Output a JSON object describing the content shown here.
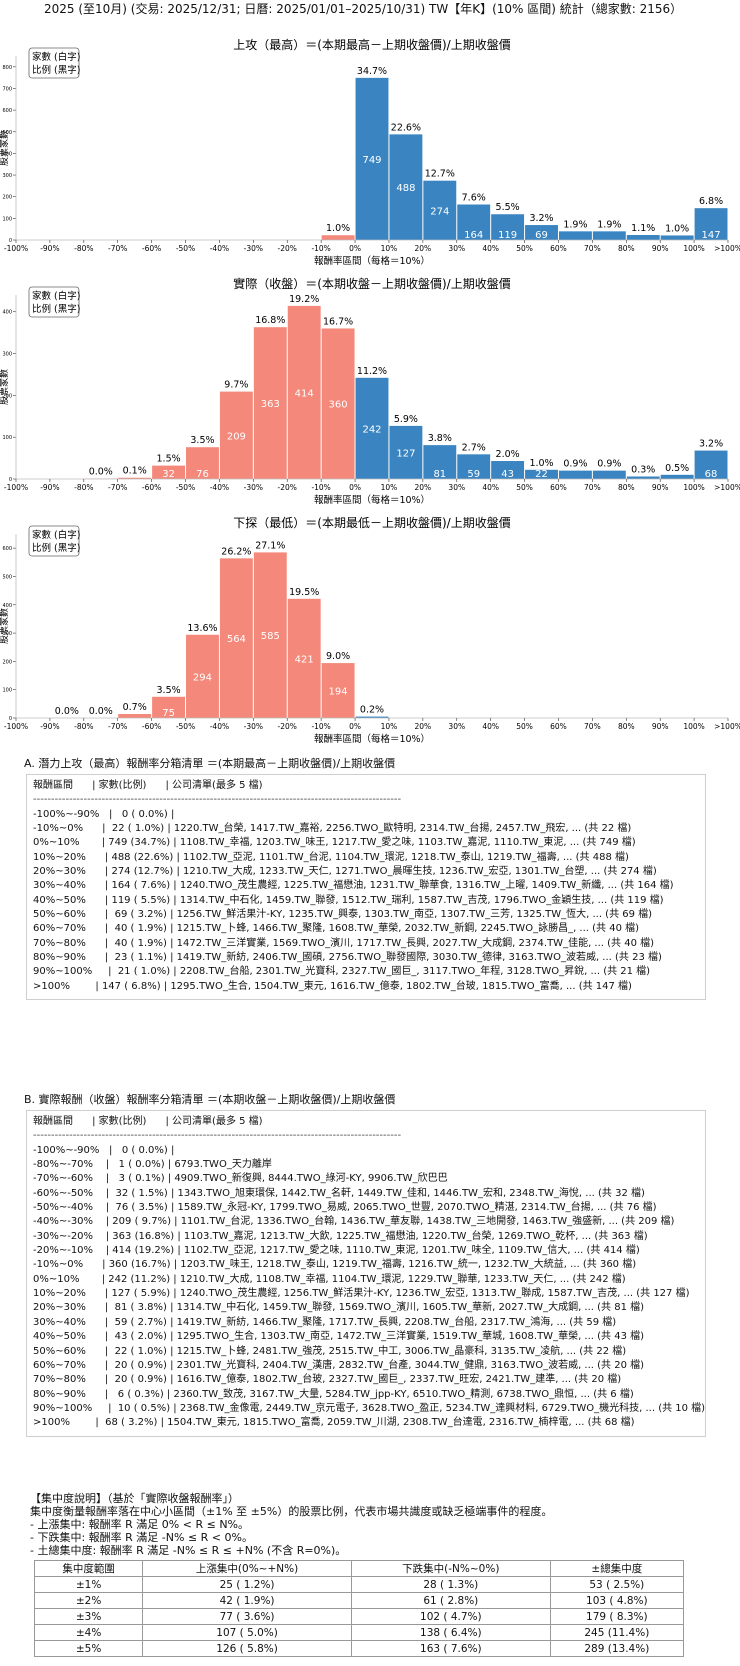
{
  "page_title": "2025 (至10月) (交易: 2025/12/31; 日曆: 2025/01/01–2025/10/31) TW【年K】(10% 區間) 統計（總家數: 2156）",
  "legend": {
    "line1": "家數 (白字)",
    "line2": "比例 (黑字)"
  },
  "colors": {
    "positive": "#3a85c1",
    "negative": "#f4887a"
  },
  "chart_data": [
    {
      "type": "bar",
      "title": "上攻（最高）＝(本期最高－上期收盤價)/上期收盤價",
      "xlabel": "報酬率區間（每格＝10%）",
      "ylabel": "股票家數",
      "ylim": [
        0,
        850
      ],
      "yticks": [
        0,
        100,
        200,
        300,
        400,
        500,
        600,
        700,
        800
      ],
      "xticks": [
        "-100%",
        "-90%",
        "-80%",
        "-70%",
        "-60%",
        "-50%",
        "-40%",
        "-30%",
        "-20%",
        "-10%",
        "0%",
        "10%",
        "20%",
        "30%",
        "40%",
        "50%",
        "60%",
        "70%",
        "80%",
        "90%",
        "100%",
        ">100%"
      ],
      "counts": [
        0,
        0,
        0,
        0,
        0,
        0,
        0,
        0,
        0,
        22,
        749,
        488,
        274,
        164,
        119,
        69,
        40,
        40,
        23,
        21,
        147
      ],
      "pcts": [
        "",
        "",
        "",
        "",
        "",
        "",
        "",
        "",
        "",
        "1.0%",
        "34.7%",
        "22.6%",
        "12.7%",
        "7.6%",
        "5.5%",
        "3.2%",
        "1.9%",
        "1.9%",
        "1.1%",
        "1.0%",
        "6.8%"
      ]
    },
    {
      "type": "bar",
      "title": "實際（收盤）＝(本期收盤－上期收盤價)/上期收盤價",
      "xlabel": "報酬率區間（每格＝10%）",
      "ylabel": "股票家數",
      "ylim": [
        0,
        440
      ],
      "yticks": [
        0,
        100,
        200,
        300,
        400
      ],
      "xticks": [
        "-100%",
        "-90%",
        "-80%",
        "-70%",
        "-60%",
        "-50%",
        "-40%",
        "-30%",
        "-20%",
        "-10%",
        "0%",
        "10%",
        "20%",
        "30%",
        "40%",
        "50%",
        "60%",
        "70%",
        "80%",
        "90%",
        "100%",
        ">100%"
      ],
      "counts": [
        0,
        0,
        1,
        3,
        32,
        76,
        209,
        363,
        414,
        360,
        242,
        127,
        81,
        59,
        43,
        22,
        20,
        20,
        6,
        10,
        68
      ],
      "pcts": [
        "",
        "",
        "0.0%",
        "0.1%",
        "1.5%",
        "3.5%",
        "9.7%",
        "16.8%",
        "19.2%",
        "16.7%",
        "11.2%",
        "5.9%",
        "3.8%",
        "2.7%",
        "2.0%",
        "1.0%",
        "0.9%",
        "0.9%",
        "0.3%",
        "0.5%",
        "3.2%"
      ]
    },
    {
      "type": "bar",
      "title": "下探（最低）＝(本期最低－上期收盤價)/上期收盤價",
      "xlabel": "報酬率區間（每格＝10%）",
      "ylabel": "股票家數",
      "ylim": [
        0,
        650
      ],
      "yticks": [
        0,
        100,
        200,
        300,
        400,
        500,
        600
      ],
      "xticks": [
        "-100%",
        "-90%",
        "-80%",
        "-70%",
        "-60%",
        "-50%",
        "-40%",
        "-30%",
        "-20%",
        "-10%",
        "0%",
        "10%",
        "20%",
        "30%",
        "40%",
        "50%",
        "60%",
        "70%",
        "80%",
        "90%",
        "100%",
        ">100%"
      ],
      "counts": [
        0,
        0,
        0,
        14,
        75,
        294,
        564,
        585,
        421,
        194,
        5,
        0,
        0,
        0,
        0,
        0,
        0,
        0,
        0,
        0,
        0
      ],
      "pcts": [
        "",
        "0.0%",
        "0.0%",
        "0.7%",
        "3.5%",
        "13.6%",
        "26.2%",
        "27.1%",
        "19.5%",
        "9.0%",
        "0.2%",
        "",
        "",
        "",
        "",
        "",
        "",
        "",
        "",
        "",
        ""
      ]
    }
  ],
  "list_a": {
    "title": "A. 潛力上攻（最高）報酬率分箱清單 ＝(本期最高－上期收盤價)/上期收盤價",
    "header": "報酬區間      | 家數(比例)      | 公司清單(最多 5 檔)",
    "separator": "------------------------------------------------------------------------------------------------------",
    "rows": [
      "-100%~-90%   |   0 ( 0.0%) |",
      "-10%~0%      |  22 ( 1.0%) | 1220.TW_台榮, 1417.TW_嘉裕, 2256.TWO_歐特明, 2314.TW_台揚, 2457.TW_飛宏, ... (共 22 檔)",
      "0%~10%       | 749 (34.7%) | 1108.TW_幸福, 1203.TW_味王, 1217.TW_愛之味, 1103.TW_嘉泥, 1110.TW_東泥, ... (共 749 檔)",
      "10%~20%      | 488 (22.6%) | 1102.TW_亞泥, 1101.TW_台泥, 1104.TW_環泥, 1218.TW_泰山, 1219.TW_福壽, ... (共 488 檔)",
      "20%~30%      | 274 (12.7%) | 1210.TW_大成, 1233.TW_天仁, 1271.TWO_晨暉生技, 1236.TW_宏亞, 1301.TW_台塑, ... (共 274 檔)",
      "30%~40%      | 164 ( 7.6%) | 1240.TWO_茂生農經, 1225.TW_福懋油, 1231.TW_聯華食, 1316.TW_上曜, 1409.TW_新纖, ... (共 164 檔)",
      "40%~50%      | 119 ( 5.5%) | 1314.TW_中石化, 1459.TW_聯發, 1512.TW_瑞利, 1587.TW_吉茂, 1796.TWO_金穎生技, ... (共 119 檔)",
      "50%~60%      |  69 ( 3.2%) | 1256.TW_鮮活果汁-KY, 1235.TW_興泰, 1303.TW_南亞, 1307.TW_三芳, 1325.TW_恆大, ... (共 69 檔)",
      "60%~70%      |  40 ( 1.9%) | 1215.TW_卜蜂, 1466.TW_聚隆, 1608.TW_華榮, 2032.TW_新鋼, 2245.TWO_詠勝昌_, ... (共 40 檔)",
      "70%~80%      |  40 ( 1.9%) | 1472.TW_三洋實業, 1569.TWO_濱川, 1717.TW_長興, 2027.TW_大成鋼, 2374.TW_佳能, ... (共 40 檔)",
      "80%~90%      |  23 ( 1.1%) | 1419.TW_新紡, 2406.TW_國碩, 2756.TWO_聯發國際, 3030.TW_德律, 3163.TWO_波若威, ... (共 23 檔)",
      "90%~100%     |  21 ( 1.0%) | 2208.TW_台船, 2301.TW_光寶科, 2327.TW_國巨_, 3117.TWO_年程, 3128.TWO_昇銳, ... (共 21 檔)",
      ">100%        | 147 ( 6.8%) | 1295.TWO_生合, 1504.TW_東元, 1616.TW_億泰, 1802.TW_台玻, 1815.TWO_富喬, ... (共 147 檔)"
    ]
  },
  "list_b": {
    "title": "B. 實際報酬（收盤）報酬率分箱清單 ＝(本期收盤－上期收盤價)/上期收盤價",
    "header": "報酬區間      | 家數(比例)      | 公司清單(最多 5 檔)",
    "separator": "------------------------------------------------------------------------------------------------------",
    "rows": [
      "-100%~-90%   |   0 ( 0.0%) |",
      "-80%~-70%    |   1 ( 0.0%) | 6793.TWO_天力離岸",
      "-70%~-60%    |   3 ( 0.1%) | 4909.TWO_新復興, 8444.TWO_綠河-KY, 9906.TW_欣巴巴",
      "-60%~-50%    |  32 ( 1.5%) | 1343.TWO_旭東環保, 1442.TW_名軒, 1449.TW_佳和, 1446.TW_宏和, 2348.TW_海悅, ... (共 32 檔)",
      "-50%~-40%    |  76 ( 3.5%) | 1589.TW_永冠-KY, 1799.TWO_易威, 2065.TWO_世豐, 2070.TWO_精湛, 2314.TW_台揚, ... (共 76 檔)",
      "-40%~-30%    | 209 ( 9.7%) | 1101.TW_台泥, 1336.TWO_台翰, 1436.TW_華友聯, 1438.TW_三地開發, 1463.TW_強盛新, ... (共 209 檔)",
      "-30%~-20%    | 363 (16.8%) | 1103.TW_嘉泥, 1213.TW_大飲, 1225.TW_福懋油, 1220.TW_台榮, 1269.TWO_乾杯, ... (共 363 檔)",
      "-20%~-10%    | 414 (19.2%) | 1102.TW_亞泥, 1217.TW_愛之味, 1110.TW_東泥, 1201.TW_味全, 1109.TW_信大, ... (共 414 檔)",
      "-10%~0%      | 360 (16.7%) | 1203.TW_味王, 1218.TW_泰山, 1219.TW_福壽, 1216.TW_統一, 1232.TW_大統益, ... (共 360 檔)",
      "0%~10%       | 242 (11.2%) | 1210.TW_大成, 1108.TW_幸福, 1104.TW_環泥, 1229.TW_聯華, 1233.TW_天仁, ... (共 242 檔)",
      "10%~20%      | 127 ( 5.9%) | 1240.TWO_茂生農經, 1256.TW_鮮活果汁-KY, 1236.TW_宏亞, 1313.TW_聯成, 1587.TW_吉茂, ... (共 127 檔)",
      "20%~30%      |  81 ( 3.8%) | 1314.TW_中石化, 1459.TW_聯發, 1569.TWO_濱川, 1605.TW_華新, 2027.TW_大成鋼, ... (共 81 檔)",
      "30%~40%      |  59 ( 2.7%) | 1419.TW_新紡, 1466.TW_聚隆, 1717.TW_長興, 2208.TW_台船, 2317.TW_鴻海, ... (共 59 檔)",
      "40%~50%      |  43 ( 2.0%) | 1295.TWO_生合, 1303.TW_南亞, 1472.TW_三洋實業, 1519.TW_華城, 1608.TW_華榮, ... (共 43 檔)",
      "50%~60%      |  22 ( 1.0%) | 1215.TW_卜蜂, 2481.TW_強茂, 2515.TW_中工, 3006.TW_晶豪科, 3135.TW_凌航, ... (共 22 檔)",
      "60%~70%      |  20 ( 0.9%) | 2301.TW_光寶科, 2404.TW_漢唐, 2832.TW_台產, 3044.TW_健鼎, 3163.TWO_波若威, ... (共 20 檔)",
      "70%~80%      |  20 ( 0.9%) | 1616.TW_億泰, 1802.TW_台玻, 2327.TW_國巨_, 2337.TW_旺宏, 2421.TW_建準, ... (共 20 檔)",
      "80%~90%      |   6 ( 0.3%) | 2360.TW_致茂, 3167.TW_大量, 5284.TW_jpp-KY, 6510.TWO_精測, 6738.TWO_鼎恒, ... (共 6 檔)",
      "90%~100%     |  10 ( 0.5%) | 2368.TW_金像電, 2449.TW_京元電子, 3628.TWO_盈正, 5234.TW_達興材料, 6729.TWO_機光科技, ... (共 10 檔)",
      ">100%        |  68 ( 3.2%) | 1504.TW_東元, 1815.TWO_富喬, 2059.TW_川湖, 2308.TW_台達電, 2316.TW_楠梓電, ... (共 68 檔)"
    ]
  },
  "concentration": {
    "title": "【集中度說明】（基於「實際收盤報酬率」）",
    "desc": "集中度衡量報酬率落在中心小區間（±1% 至 ±5%）的股票比例，代表市場共識度或缺乏極端事件的程度。",
    "rules": [
      "- 上漲集中: 報酬率 R 滿足 0% < R ≤ N%。",
      "- 下跌集中: 報酬率 R 滿足 -N% ≤ R < 0%。",
      "- 土總集中度: 報酬率 R 滿足 -N% ≤ R ≤ +N% (不含 R=0%)。"
    ],
    "headers": [
      "集中度範圍",
      "上漲集中(0%~+N%)",
      "下跌集中(-N%~0%)",
      "±總集中度"
    ],
    "rows": [
      [
        "±1%",
        "25 ( 1.2%)",
        "28 ( 1.3%)",
        "53 ( 2.5%)"
      ],
      [
        "±2%",
        "42 ( 1.9%)",
        "61 ( 2.8%)",
        "103 ( 4.8%)"
      ],
      [
        "±3%",
        "77 ( 3.6%)",
        "102 ( 4.7%)",
        "179 ( 8.3%)"
      ],
      [
        "±4%",
        "107 ( 5.0%)",
        "138 ( 6.4%)",
        "245 (11.4%)"
      ],
      [
        "±5%",
        "126 ( 5.8%)",
        "163 ( 7.6%)",
        "289 (13.4%)"
      ]
    ]
  }
}
